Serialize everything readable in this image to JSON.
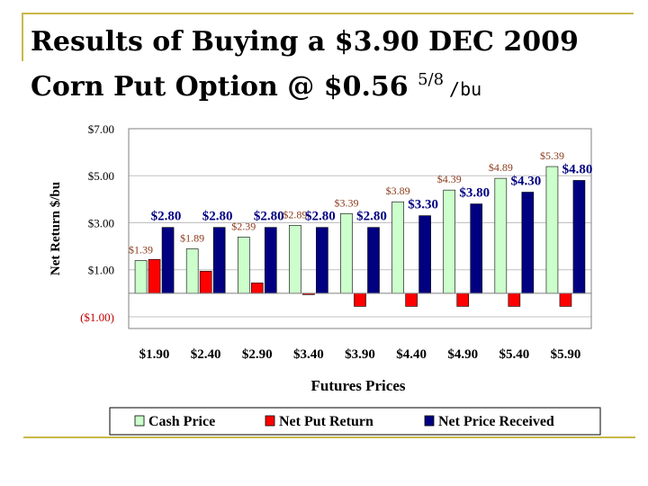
{
  "slide": {
    "title_line1": "Results of Buying a $3.90 DEC 2009",
    "title_line2_main": "Corn Put Option @ $0.56 ",
    "title_line2_fraction": "5/8",
    "title_line2_unit": "/bu",
    "accent_color": "#c9b84a"
  },
  "chart_data": {
    "type": "bar",
    "title": "",
    "xlabel": "Futures Prices",
    "ylabel": "Net Return $/bu",
    "categories": [
      "$1.90",
      "$2.40",
      "$2.90",
      "$3.40",
      "$3.90",
      "$4.40",
      "$4.90",
      "$5.40",
      "$5.90"
    ],
    "ylim": [
      -1.5,
      7.0
    ],
    "yticks": [
      7.0,
      5.0,
      3.0,
      1.0,
      -1.0
    ],
    "ytick_labels": [
      "$7.00",
      "$5.00",
      "$3.00",
      "$1.00",
      "($1.00)"
    ],
    "grid": true,
    "legend_position": "bottom",
    "series": [
      {
        "name": "Cash Price",
        "color": "#ccffcc",
        "values": [
          1.39,
          1.89,
          2.39,
          2.89,
          3.39,
          3.89,
          4.39,
          4.89,
          5.39
        ],
        "labels": [
          "$1.39",
          "$1.89",
          "$2.39",
          "$2.89",
          "$3.39",
          "$3.89",
          "$4.39",
          "$4.89",
          "$5.39"
        ]
      },
      {
        "name": "Net Put Return",
        "color": "#ff0000",
        "values": [
          1.44,
          0.94,
          0.44,
          -0.06,
          -0.56,
          -0.56,
          -0.56,
          -0.56,
          -0.56
        ]
      },
      {
        "name": "Net Price Received",
        "color": "#000080",
        "values": [
          2.8,
          2.8,
          2.8,
          2.8,
          2.8,
          3.3,
          3.8,
          4.3,
          4.8
        ],
        "labels": [
          "$2.80",
          "$2.80",
          "$2.80",
          "$2.80",
          "$2.80",
          "$3.30",
          "$3.80",
          "$4.30",
          "$4.80"
        ]
      }
    ]
  }
}
